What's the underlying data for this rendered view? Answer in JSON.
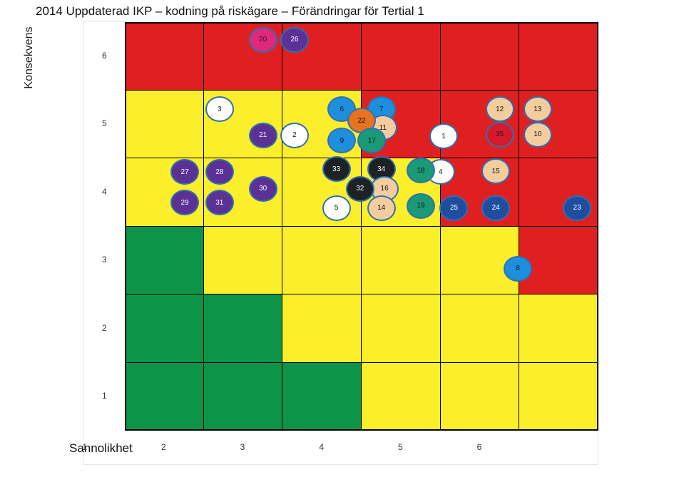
{
  "title": "2014 Uppdaterad IKP – kodning på riskägare – Förändringar för Tertial 1",
  "ylabel": "Konsekvens",
  "xlabel": "Sannolikhet",
  "x_ticks": [
    "1",
    "2",
    "3",
    "4",
    "5",
    "6"
  ],
  "y_ticks": [
    "6",
    "5",
    "4",
    "3",
    "2",
    "1"
  ],
  "colors": {
    "red": "#e02020",
    "yellow": "#fbee2a",
    "green": "#0d9448"
  },
  "matrix_rows_top_to_bottom": [
    [
      "red",
      "red",
      "red",
      "red",
      "red",
      "red"
    ],
    [
      "yellow",
      "yellow",
      "yellow",
      "red",
      "red",
      "red"
    ],
    [
      "yellow",
      "yellow",
      "yellow",
      "yellow",
      "red",
      "red"
    ],
    [
      "green",
      "yellow",
      "yellow",
      "yellow",
      "yellow",
      "red"
    ],
    [
      "green",
      "green",
      "yellow",
      "yellow",
      "yellow",
      "yellow"
    ],
    [
      "green",
      "green",
      "green",
      "yellow",
      "yellow",
      "yellow"
    ]
  ],
  "marker_styles": {
    "pink": {
      "fill": "#e0287c",
      "text": "#1a1a1a"
    },
    "purple": {
      "fill": "#5b3196",
      "text": "#ffffff"
    },
    "white": {
      "fill": "#ffffff",
      "text": "#111111"
    },
    "blue": {
      "fill": "#1e8fdc",
      "text": "#111111"
    },
    "orange": {
      "fill": "#e8721e",
      "text": "#111111"
    },
    "peach": {
      "fill": "#f4cd9f",
      "text": "#111111"
    },
    "teal": {
      "fill": "#1a9a76",
      "text": "#111111"
    },
    "black": {
      "fill": "#1d2324",
      "text": "#ffffff"
    },
    "navy": {
      "fill": "#1f4da0",
      "text": "#ffffff"
    },
    "red": {
      "fill": "#d7192a",
      "text": "#1a1a1a"
    }
  },
  "markers": [
    {
      "id": "20",
      "style": "pink",
      "sannolikhet": 2.25,
      "konsekvens": 6.24
    },
    {
      "id": "26",
      "style": "purple",
      "sannolikhet": 2.65,
      "konsekvens": 6.24
    },
    {
      "id": "3",
      "style": "white",
      "sannolikhet": 1.7,
      "konsekvens": 5.22
    },
    {
      "id": "21",
      "style": "purple",
      "sannolikhet": 2.25,
      "konsekvens": 4.84
    },
    {
      "id": "2",
      "style": "white",
      "sannolikhet": 2.65,
      "konsekvens": 4.84
    },
    {
      "id": "6",
      "style": "blue",
      "sannolikhet": 3.25,
      "konsekvens": 5.22
    },
    {
      "id": "7",
      "style": "blue",
      "sannolikhet": 3.75,
      "konsekvens": 5.22
    },
    {
      "id": "11",
      "style": "peach",
      "sannolikhet": 3.77,
      "konsekvens": 4.95
    },
    {
      "id": "22",
      "style": "orange",
      "sannolikhet": 3.5,
      "konsekvens": 5.05
    },
    {
      "id": "9",
      "style": "blue",
      "sannolikhet": 3.25,
      "konsekvens": 4.76
    },
    {
      "id": "17",
      "style": "teal",
      "sannolikhet": 3.63,
      "konsekvens": 4.76
    },
    {
      "id": "1",
      "style": "white",
      "sannolikhet": 4.54,
      "konsekvens": 4.82
    },
    {
      "id": "12",
      "style": "peach",
      "sannolikhet": 5.25,
      "konsekvens": 5.22
    },
    {
      "id": "13",
      "style": "peach",
      "sannolikhet": 5.73,
      "konsekvens": 5.22
    },
    {
      "id": "35",
      "style": "red",
      "sannolikhet": 5.25,
      "konsekvens": 4.85
    },
    {
      "id": "10",
      "style": "peach",
      "sannolikhet": 5.73,
      "konsekvens": 4.85
    },
    {
      "id": "27",
      "style": "purple",
      "sannolikhet": 1.26,
      "konsekvens": 4.3
    },
    {
      "id": "28",
      "style": "purple",
      "sannolikhet": 1.7,
      "konsekvens": 4.3
    },
    {
      "id": "29",
      "style": "purple",
      "sannolikhet": 1.26,
      "konsekvens": 3.85
    },
    {
      "id": "31",
      "style": "purple",
      "sannolikhet": 1.7,
      "konsekvens": 3.85
    },
    {
      "id": "30",
      "style": "purple",
      "sannolikhet": 2.25,
      "konsekvens": 4.05
    },
    {
      "id": "33",
      "style": "black",
      "sannolikhet": 3.18,
      "konsekvens": 4.34
    },
    {
      "id": "34",
      "style": "black",
      "sannolikhet": 3.75,
      "konsekvens": 4.34
    },
    {
      "id": "16",
      "style": "peach",
      "sannolikhet": 3.79,
      "konsekvens": 4.05
    },
    {
      "id": "32",
      "style": "black",
      "sannolikhet": 3.48,
      "konsekvens": 4.05
    },
    {
      "id": "5",
      "style": "white",
      "sannolikhet": 3.18,
      "konsekvens": 3.77
    },
    {
      "id": "14",
      "style": "peach",
      "sannolikhet": 3.75,
      "konsekvens": 3.77
    },
    {
      "id": "4",
      "style": "white",
      "sannolikhet": 4.5,
      "konsekvens": 4.3
    },
    {
      "id": "18",
      "style": "teal",
      "sannolikhet": 4.25,
      "konsekvens": 4.32
    },
    {
      "id": "19",
      "style": "teal",
      "sannolikhet": 4.25,
      "konsekvens": 3.8
    },
    {
      "id": "25",
      "style": "navy",
      "sannolikhet": 4.67,
      "konsekvens": 3.77
    },
    {
      "id": "15",
      "style": "peach",
      "sannolikhet": 5.2,
      "konsekvens": 4.31
    },
    {
      "id": "24",
      "style": "navy",
      "sannolikhet": 5.2,
      "konsekvens": 3.77
    },
    {
      "id": "23",
      "style": "navy",
      "sannolikhet": 6.23,
      "konsekvens": 3.77
    },
    {
      "id": "8",
      "style": "blue",
      "sannolikhet": 5.48,
      "konsekvens": 2.88
    }
  ]
}
